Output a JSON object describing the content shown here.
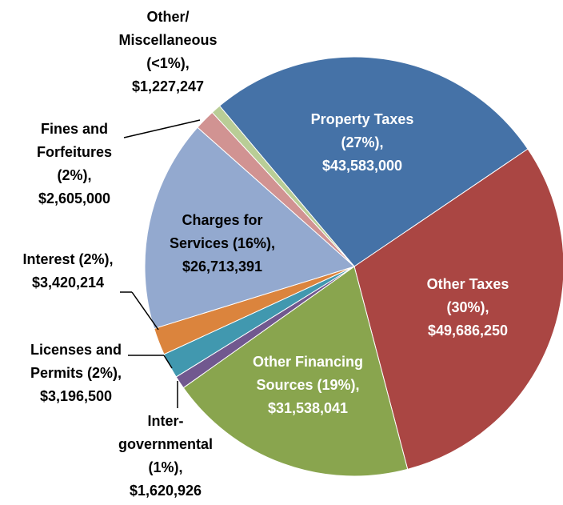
{
  "chart_data": {
    "type": "pie",
    "categories": [
      [
        "Property Taxes",
        "(27%),"
      ],
      [
        "Other Taxes",
        "(30%),"
      ],
      [
        "Other Financing",
        "Sources (19%),"
      ],
      [
        "Inter-",
        "governmental",
        "(1%),"
      ],
      [
        "Licenses and",
        "Permits (2%),"
      ],
      [
        "Interest (2%),"
      ],
      [
        "Charges for",
        "Services (16%),"
      ],
      [
        "Fines and",
        "Forfeitures",
        "(2%),"
      ],
      [
        "Other/",
        "Miscellaneous",
        "(<1%),"
      ]
    ],
    "values": [
      43583000,
      49686250,
      31538041,
      1620926,
      3196500,
      3420214,
      26713391,
      2605000,
      1227247
    ],
    "value_labels": [
      "$43,583,000",
      "$49,686,250",
      "$31,538,041",
      "$1,620,926",
      "$3,196,500",
      "$3,420,214",
      "$26,713,391",
      "$2,605,000",
      "$1,227,247"
    ],
    "colors": [
      "#4572a7",
      "#aa4643",
      "#89a54e",
      "#71588f",
      "#4198af",
      "#db843d",
      "#93a9cf",
      "#d19392",
      "#b9cd96"
    ]
  }
}
